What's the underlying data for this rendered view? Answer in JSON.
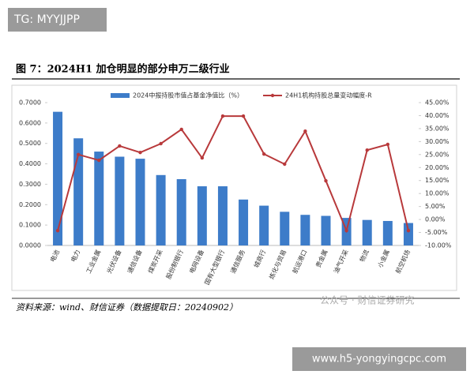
{
  "header": {
    "watermark": "TG: MYYJJPP",
    "figure_title": "图 7：2024H1 加仓明显的部分申万二级行业"
  },
  "chart_data": {
    "type": "bar-line",
    "categories": [
      "电池",
      "电力",
      "工业金属",
      "光伏设备",
      "通信设备",
      "煤炭开采",
      "股份制银行",
      "电网设备",
      "国有大型银行",
      "通信服务",
      "城商行",
      "炼化与贸易",
      "航运港口",
      "贵金属",
      "油气开采",
      "物流",
      "小金属",
      "航空机场"
    ],
    "series": [
      {
        "name": "2024中报持股市值占基金净值比（%）",
        "type": "bar",
        "color": "#3d7cc9",
        "values": [
          0.655,
          0.525,
          0.46,
          0.435,
          0.425,
          0.345,
          0.325,
          0.29,
          0.29,
          0.225,
          0.195,
          0.165,
          0.15,
          0.145,
          0.135,
          0.125,
          0.12,
          0.11
        ]
      },
      {
        "name": "24H1机构持股总量变动幅度-R",
        "type": "line",
        "axis": "y2",
        "color": "#b8393b",
        "values": [
          -4.3,
          25,
          22.8,
          28.3,
          25.8,
          29.2,
          34.7,
          23.7,
          39.8,
          39.8,
          25.2,
          21.3,
          34,
          14.9,
          -4.3,
          26.7,
          28.9,
          -4.3
        ]
      }
    ],
    "ylim": [
      0,
      0.7
    ],
    "yticks": [
      {
        "value": 0,
        "label": "0.0000"
      },
      {
        "value": 0.1,
        "label": "0.1000"
      },
      {
        "value": 0.2,
        "label": "0.2000"
      },
      {
        "value": 0.3,
        "label": "0.3000"
      },
      {
        "value": 0.4,
        "label": "0.4000"
      },
      {
        "value": 0.5,
        "label": "0.5000"
      },
      {
        "value": 0.6,
        "label": "0.6000"
      },
      {
        "value": 0.7,
        "label": "0.7000"
      }
    ],
    "y2lim": [
      -10,
      45
    ],
    "y2ticks": [
      {
        "value": -10,
        "label": "-10.00%"
      },
      {
        "value": -5,
        "label": "-5.00%"
      },
      {
        "value": 0,
        "label": "0.00%"
      },
      {
        "value": 5,
        "label": "5.00%"
      },
      {
        "value": 10,
        "label": "10.00%"
      },
      {
        "value": 15,
        "label": "15.00%"
      },
      {
        "value": 20,
        "label": "20.00%"
      },
      {
        "value": 25,
        "label": "25.00%"
      },
      {
        "value": 30,
        "label": "30.00%"
      },
      {
        "value": 35,
        "label": "35.00%"
      },
      {
        "value": 40,
        "label": "40.00%"
      },
      {
        "value": 45,
        "label": "45.00%"
      }
    ],
    "grid": false
  },
  "footer": {
    "source": "资料来源：wind、财信证券（数据提取日：20240902）",
    "wechat": "公众号 · 财信证券研究",
    "url": "www.h5-yongyingcpc.com"
  }
}
